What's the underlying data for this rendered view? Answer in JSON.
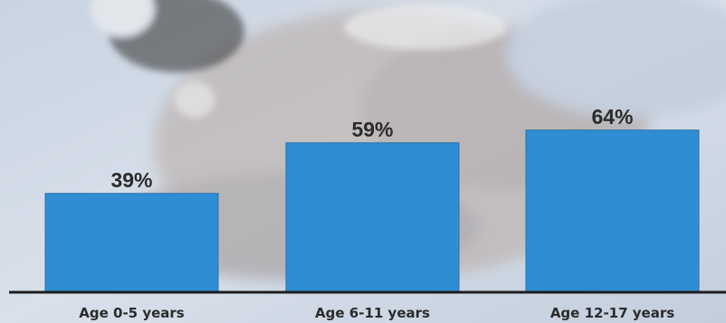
{
  "colors": {
    "bar": "#2f8dd3",
    "bar_edge": "#2a6fa8",
    "text": "#2b2b2b",
    "axis": "#1e1e1e",
    "background": "#cfd9e6"
  },
  "chart_data": {
    "type": "bar",
    "categories": [
      "Age 0-5 years",
      "Age 6-11 years",
      "Age 12-17 years"
    ],
    "values": [
      39,
      59,
      64
    ],
    "value_labels": [
      "39%",
      "59%",
      "64%"
    ],
    "title": "",
    "xlabel": "",
    "ylabel": "",
    "ylim": [
      0,
      100
    ],
    "grid": false,
    "legend": "none"
  }
}
